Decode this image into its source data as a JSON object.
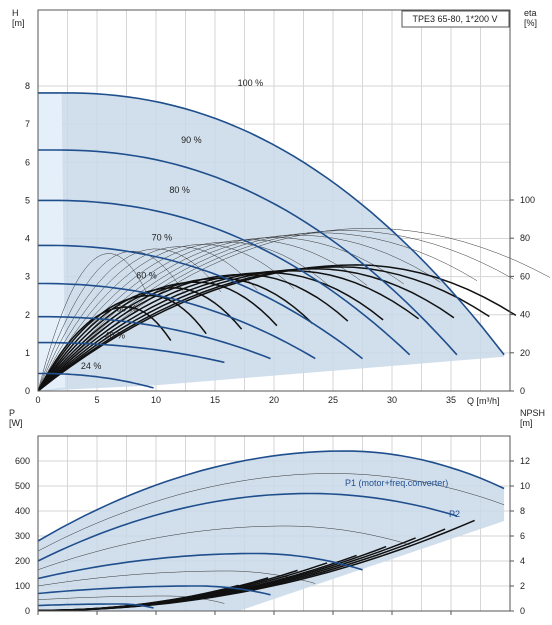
{
  "chart_data": [
    {
      "type": "line",
      "title": "TPE3 65-80, 1*200 V",
      "xlabel": "Q [m³/h]",
      "ylabel_left": "H\n[m]",
      "ylabel_right": "eta\n[%]",
      "xlim": [
        0,
        40
      ],
      "ylim_left": [
        0,
        9
      ],
      "ylim_right": [
        0,
        120
      ],
      "x_ticks": [
        "0",
        "5",
        "10",
        "15",
        "20",
        "25",
        "30",
        "35"
      ],
      "y_ticks_left": [
        "0",
        "1",
        "2",
        "3",
        "4",
        "5",
        "6",
        "7",
        "8"
      ],
      "y_ticks_right": [
        "0",
        "20",
        "40",
        "60",
        "80",
        "100"
      ],
      "head_curves": [
        {
          "label": "100 %",
          "shutoff": 7.82,
          "flat_to": 2.0,
          "end_q": 39.5,
          "end_h": 0.95
        },
        {
          "label": "90 %",
          "shutoff": 6.32,
          "flat_to": 1.5,
          "end_q": 35.5,
          "end_h": 0.95
        },
        {
          "label": "80 %",
          "shutoff": 5.0,
          "flat_to": 1.0,
          "end_q": 31.5,
          "end_h": 0.95
        },
        {
          "label": "70 %",
          "shutoff": 3.82,
          "flat_to": 0.5,
          "end_q": 27.5,
          "end_h": 0.85
        },
        {
          "label": "60 %",
          "shutoff": 2.82,
          "flat_to": 0.0,
          "end_q": 23.5,
          "end_h": 0.85
        },
        {
          "label": "50 %",
          "shutoff": 1.95,
          "flat_to": 0.0,
          "end_q": 19.7,
          "end_h": 0.85
        },
        {
          "label": "40 %",
          "shutoff": 1.27,
          "flat_to": 0.0,
          "end_q": 15.8,
          "end_h": 0.75
        },
        {
          "label": "24 %",
          "shutoff": 0.46,
          "flat_to": 0.0,
          "end_q": 9.8,
          "end_h": 0.08
        }
      ],
      "eta_peak_q": [
        7.5,
        9.5,
        11.5,
        13.5,
        15.5,
        17.5,
        19.5,
        21.5,
        23.5,
        25.5,
        27
      ],
      "eta_peak_value": [
        44,
        50,
        54,
        57,
        59,
        61,
        62,
        63,
        64,
        65,
        66
      ]
    },
    {
      "type": "line",
      "xlabel": "",
      "ylabel_left": "P\n[W]",
      "ylabel_right": "NPSH\n[m]",
      "xlim": [
        0,
        40
      ],
      "ylim_left": [
        0,
        650
      ],
      "ylim_right": [
        0,
        14
      ],
      "y_ticks_left": [
        "0",
        "100",
        "200",
        "300",
        "400",
        "500",
        "600"
      ],
      "y_ticks_right": [
        "0",
        "2",
        "4",
        "6",
        "8",
        "10",
        "12"
      ],
      "labels": {
        "p1": "P1 (motor+freq.converter)",
        "p2": "P2"
      },
      "power_curves": [
        {
          "start_w": 280,
          "peak_q": 26,
          "peak_w": 640,
          "end_q": 39.5,
          "end_w": 490
        },
        {
          "start_w": 240,
          "peak_q": 25,
          "peak_w": 550,
          "end_q": 39.5,
          "end_w": 425
        },
        {
          "start_w": 200,
          "peak_q": 23,
          "peak_w": 470,
          "end_q": 35.5,
          "end_w": 380
        },
        {
          "start_w": 165,
          "peak_q": 21,
          "peak_w": 340,
          "end_q": 31.5,
          "end_w": 265
        },
        {
          "start_w": 130,
          "peak_q": 18.5,
          "peak_w": 230,
          "end_q": 27.5,
          "end_w": 165
        },
        {
          "start_w": 100,
          "peak_q": 16,
          "peak_w": 160,
          "end_q": 23.5,
          "end_w": 110
        },
        {
          "start_w": 70,
          "peak_q": 13.5,
          "peak_w": 100,
          "end_q": 19.7,
          "end_w": 65
        },
        {
          "start_w": 45,
          "peak_q": 11,
          "peak_w": 60,
          "end_q": 15.8,
          "end_w": 30
        },
        {
          "start_w": 22,
          "peak_q": 7,
          "peak_w": 28,
          "end_q": 9.8,
          "end_w": 12
        }
      ],
      "npsh_end_m": [
        7.2,
        6.5,
        5.8,
        5.1,
        4.4,
        3.8,
        3.2,
        2.6,
        2.0,
        1.4
      ]
    }
  ]
}
